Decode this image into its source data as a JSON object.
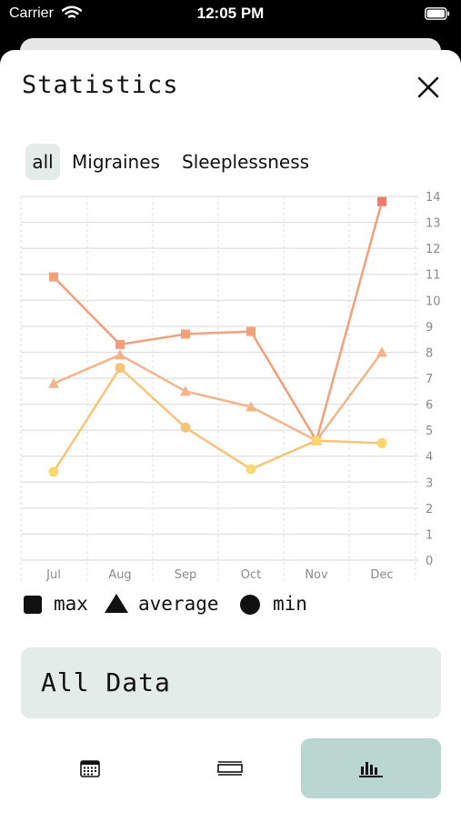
{
  "status_bar": {
    "carrier": "Carrier",
    "time": "12:05 PM"
  },
  "title": "Statistics",
  "tabs": [
    {
      "label": "all",
      "selected": true
    },
    {
      "label": "Migraines",
      "selected": false
    },
    {
      "label": "Sleeplessness",
      "selected": false
    }
  ],
  "chart_data": {
    "type": "line",
    "categories": [
      "Jul",
      "Aug",
      "Sep",
      "Oct",
      "Nov",
      "Dec"
    ],
    "y_ticks": [
      "0",
      "1",
      "2",
      "3",
      "4",
      "5",
      "6",
      "7",
      "8",
      "9",
      "10",
      "11",
      "12",
      "13",
      "14"
    ],
    "ylim": [
      0,
      14
    ],
    "grid": true,
    "series": [
      {
        "name": "max",
        "marker": "square",
        "color": "#f0a07a",
        "values": [
          10.9,
          8.3,
          8.7,
          8.8,
          4.6,
          13.8
        ]
      },
      {
        "name": "average",
        "marker": "triangle",
        "color": "#f3b48a",
        "values": [
          6.8,
          7.9,
          6.5,
          5.9,
          4.6,
          8.0
        ]
      },
      {
        "name": "min",
        "marker": "circle",
        "color": "#f6c478",
        "values": [
          3.4,
          7.4,
          5.1,
          3.5,
          4.6,
          4.5
        ]
      }
    ]
  },
  "legend": [
    {
      "label": "max",
      "icon": "square"
    },
    {
      "label": "average",
      "icon": "triangle"
    },
    {
      "label": "min",
      "icon": "circle"
    }
  ],
  "all_data_label": "All Data",
  "bottom_nav": [
    {
      "icon": "calendar-icon",
      "selected": false
    },
    {
      "icon": "list-icon",
      "selected": false
    },
    {
      "icon": "chart-icon",
      "selected": true
    }
  ],
  "colors": {
    "accent": "#b9d6d1",
    "chip_bg": "#e4ecea"
  }
}
